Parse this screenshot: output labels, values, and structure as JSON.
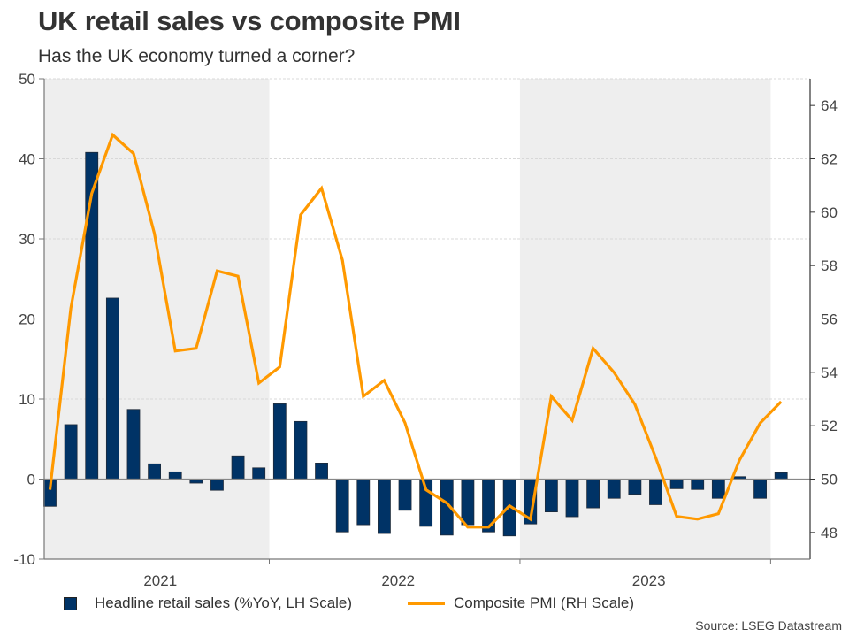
{
  "header": {
    "title": "UK retail sales vs composite PMI",
    "subtitle": "Has the UK economy turned a corner?"
  },
  "legend": {
    "bar_label": "Headline retail sales (%YoY, LH Scale)",
    "line_label": "Composite PMI (RH Scale)"
  },
  "source": "Source: LSEG Datastream",
  "colors": {
    "bar": "#003366",
    "bar_border": "#1f2b3a",
    "line": "#FF9900",
    "shade": "#EEEEEE",
    "grid": "#D8D8D8",
    "axis": "#777777"
  },
  "chart_data": {
    "type": "bar+line",
    "title": "UK retail sales vs composite PMI",
    "subtitle": "Has the UK economy turned a corner?",
    "x": [
      "2021-02",
      "2021-03",
      "2021-04",
      "2021-05",
      "2021-06",
      "2021-07",
      "2021-08",
      "2021-09",
      "2021-10",
      "2021-11",
      "2021-12",
      "2022-01",
      "2022-02",
      "2022-03",
      "2022-04",
      "2022-05",
      "2022-06",
      "2022-07",
      "2022-08",
      "2022-09",
      "2022-10",
      "2022-11",
      "2022-12",
      "2023-01",
      "2023-02",
      "2023-03",
      "2023-04",
      "2023-05",
      "2023-06",
      "2023-07",
      "2023-08",
      "2023-09",
      "2023-10",
      "2023-11",
      "2023-12",
      "2024-01"
    ],
    "x_tick_labels": [
      "2021",
      "2022",
      "2023"
    ],
    "shaded_years": [
      "2021",
      "2023"
    ],
    "series": [
      {
        "name": "Headline retail sales (%YoY, LH Scale)",
        "type": "bar",
        "axis": "left",
        "values": [
          -3.4,
          6.8,
          40.8,
          22.6,
          8.7,
          1.9,
          0.9,
          -0.5,
          -1.4,
          2.9,
          1.4,
          9.4,
          7.2,
          2.0,
          -6.6,
          -5.7,
          -6.8,
          -3.9,
          -5.9,
          -7.0,
          -5.7,
          -6.6,
          -7.1,
          -5.6,
          -4.1,
          -4.7,
          -3.6,
          -2.4,
          -1.9,
          -3.2,
          -1.2,
          -1.3,
          -2.4,
          0.3,
          -2.4,
          0.8
        ]
      },
      {
        "name": "Composite PMI (RH Scale)",
        "type": "line",
        "axis": "right",
        "values": [
          49.6,
          56.4,
          60.7,
          62.9,
          62.2,
          59.2,
          54.8,
          54.9,
          57.8,
          57.6,
          53.6,
          54.2,
          59.9,
          60.9,
          58.2,
          53.1,
          53.7,
          52.1,
          49.6,
          49.1,
          48.2,
          48.2,
          49.0,
          48.5,
          53.1,
          52.2,
          54.9,
          54.0,
          52.8,
          50.8,
          48.6,
          48.5,
          48.7,
          50.7,
          52.1,
          52.9
        ]
      }
    ],
    "left_axis": {
      "ylim": [
        -10,
        50
      ],
      "ticks": [
        -10,
        0,
        10,
        20,
        30,
        40,
        50
      ]
    },
    "right_axis": {
      "ylim": [
        47,
        65
      ],
      "ticks": [
        48,
        50,
        52,
        54,
        56,
        58,
        60,
        62,
        64
      ]
    },
    "grid": true,
    "legend_position": "bottom",
    "xlabel": "",
    "ylabel": ""
  }
}
